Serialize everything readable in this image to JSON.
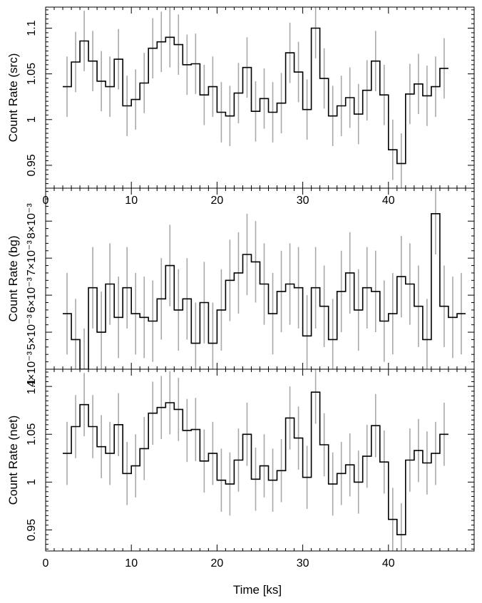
{
  "figure": {
    "xlabel": "Time [ks]"
  },
  "chart_data": [
    {
      "type": "line",
      "ylabel": "Count Rate (src)",
      "xlim": [
        0,
        50
      ],
      "ylim": [
        0.925,
        1.123
      ],
      "x_ticks": [
        "0",
        "10",
        "20",
        "30",
        "40"
      ],
      "y_ticks": [
        {
          "v": 0.95,
          "label": "0.95"
        },
        {
          "v": 1.0,
          "label": "1"
        },
        {
          "v": 1.05,
          "label": "1.05"
        },
        {
          "v": 1.1,
          "label": "1.1"
        }
      ],
      "bin_start": 2.0,
      "bin_width": 1.0,
      "values": [
        1.036,
        1.063,
        1.086,
        1.064,
        1.042,
        1.036,
        1.066,
        1.015,
        1.022,
        1.04,
        1.078,
        1.085,
        1.09,
        1.082,
        1.06,
        1.061,
        1.027,
        1.036,
        1.008,
        1.004,
        1.029,
        1.057,
        1.009,
        1.023,
        1.008,
        1.018,
        1.073,
        1.052,
        1.011,
        1.1,
        1.045,
        1.004,
        1.015,
        1.024,
        1.006,
        1.032,
        1.064,
        1.027,
        0.967,
        0.952,
        1.028,
        1.039,
        1.026,
        1.036,
        1.056
      ],
      "errors": [
        0.033,
        0.033,
        0.033,
        0.033,
        0.033,
        0.033,
        0.033,
        0.033,
        0.033,
        0.033,
        0.033,
        0.033,
        0.033,
        0.033,
        0.033,
        0.033,
        0.033,
        0.033,
        0.033,
        0.033,
        0.033,
        0.033,
        0.033,
        0.033,
        0.033,
        0.033,
        0.033,
        0.033,
        0.033,
        0.033,
        0.033,
        0.033,
        0.033,
        0.033,
        0.033,
        0.033,
        0.033,
        0.033,
        0.033,
        0.033,
        0.033,
        0.033,
        0.033,
        0.033,
        0.033
      ]
    },
    {
      "type": "line",
      "ylabel": "Count Rate (bg)",
      "xlim": [
        0,
        50
      ],
      "ylim": [
        0.004,
        0.00889
      ],
      "x_ticks": [
        "",
        "",
        "",
        "",
        ""
      ],
      "y_ticks": [
        {
          "v": 0.004,
          "label": "4×10⁻³"
        },
        {
          "v": 0.005,
          "label": "5×10⁻³"
        },
        {
          "v": 0.006,
          "label": "6×10⁻³"
        },
        {
          "v": 0.007,
          "label": "7×10⁻³"
        },
        {
          "v": 0.008,
          "label": "8×10⁻³"
        }
      ],
      "bin_start": 2.0,
      "bin_width": 1.0,
      "values": [
        0.0055,
        0.0048,
        0.004,
        0.0062,
        0.005,
        0.0063,
        0.0054,
        0.0062,
        0.0055,
        0.0054,
        0.0053,
        0.0059,
        0.0068,
        0.0056,
        0.0059,
        0.0047,
        0.0058,
        0.0047,
        0.0056,
        0.0064,
        0.0066,
        0.0071,
        0.0069,
        0.0063,
        0.0055,
        0.0061,
        0.0063,
        0.0062,
        0.0049,
        0.0062,
        0.0057,
        0.0048,
        0.0061,
        0.0066,
        0.0056,
        0.0062,
        0.0061,
        0.0053,
        0.0055,
        0.0065,
        0.0063,
        0.0057,
        0.0048,
        0.0082,
        0.0057,
        0.0054,
        0.0055
      ],
      "errors": [
        0.0011,
        0.0011,
        0.0011,
        0.0011,
        0.0011,
        0.0011,
        0.0011,
        0.0011,
        0.0011,
        0.0011,
        0.0011,
        0.0011,
        0.0011,
        0.0011,
        0.0011,
        0.0011,
        0.0011,
        0.0011,
        0.0011,
        0.0011,
        0.0011,
        0.0011,
        0.0011,
        0.0011,
        0.0011,
        0.0011,
        0.0011,
        0.0011,
        0.0011,
        0.0011,
        0.0011,
        0.0011,
        0.0011,
        0.0011,
        0.0011,
        0.0011,
        0.0011,
        0.0011,
        0.0011,
        0.0011,
        0.0011,
        0.0011,
        0.0011,
        0.0011,
        0.0011,
        0.0011,
        0.0011
      ]
    },
    {
      "type": "line",
      "ylabel": "Count Rate (net)",
      "xlim": [
        0,
        50
      ],
      "ylim": [
        0.928,
        1.118
      ],
      "x_ticks": [
        "0",
        "10",
        "20",
        "30",
        "40"
      ],
      "y_ticks": [
        {
          "v": 0.95,
          "label": "0.95"
        },
        {
          "v": 1.0,
          "label": "1"
        },
        {
          "v": 1.05,
          "label": "1.05"
        },
        {
          "v": 1.1,
          "label": "1.1"
        }
      ],
      "bin_start": 2.0,
      "bin_width": 1.0,
      "values": [
        1.03,
        1.058,
        1.081,
        1.058,
        1.037,
        1.03,
        1.06,
        1.009,
        1.017,
        1.035,
        1.072,
        1.078,
        1.083,
        1.076,
        1.054,
        1.055,
        1.022,
        1.03,
        1.002,
        0.998,
        1.023,
        1.05,
        1.003,
        1.017,
        1.002,
        1.012,
        1.067,
        1.046,
        1.005,
        1.094,
        1.039,
        0.998,
        1.009,
        1.018,
        1.0,
        1.027,
        1.059,
        1.021,
        0.961,
        0.945,
        1.023,
        1.033,
        1.02,
        1.03,
        1.05
      ],
      "errors": [
        0.033,
        0.033,
        0.033,
        0.033,
        0.033,
        0.033,
        0.033,
        0.033,
        0.033,
        0.033,
        0.033,
        0.033,
        0.033,
        0.033,
        0.033,
        0.033,
        0.033,
        0.033,
        0.033,
        0.033,
        0.033,
        0.033,
        0.033,
        0.033,
        0.033,
        0.033,
        0.033,
        0.033,
        0.033,
        0.033,
        0.033,
        0.033,
        0.033,
        0.033,
        0.033,
        0.033,
        0.033,
        0.033,
        0.033,
        0.033,
        0.033,
        0.033,
        0.033,
        0.033,
        0.033
      ]
    }
  ]
}
